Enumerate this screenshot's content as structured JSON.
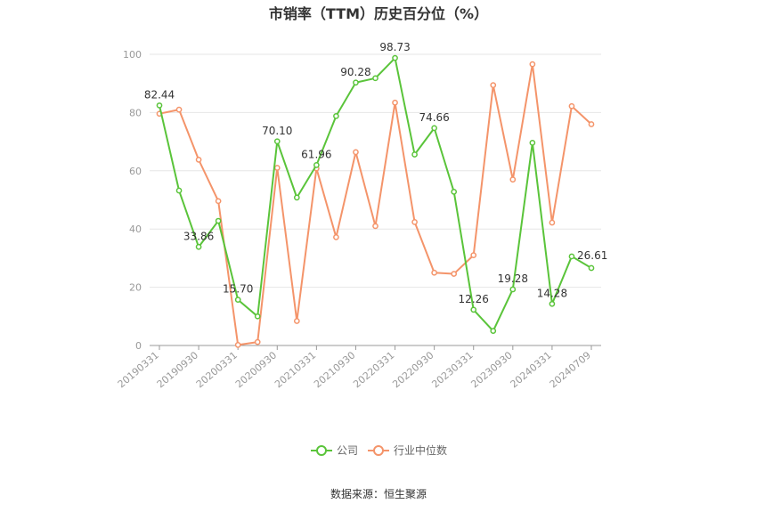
{
  "chart_data": {
    "type": "line",
    "title": "市销率（TTM）历史百分位（%）",
    "xlabel": "",
    "ylabel": "",
    "ylim": [
      0,
      100
    ],
    "yticks": [
      0,
      20,
      40,
      60,
      80,
      100
    ],
    "x": [
      "20190331",
      "20190630",
      "20190930",
      "20191231",
      "20200331",
      "20200630",
      "20200930",
      "20201231",
      "20210331",
      "20210630",
      "20210930",
      "20211231",
      "20220331",
      "20220630",
      "20220930",
      "20221231",
      "20230331",
      "20230630",
      "20230930",
      "20231231",
      "20240331",
      "20240630",
      "20240709"
    ],
    "xtick_labels": [
      "20190331",
      "20190930",
      "20200331",
      "20200930",
      "20210331",
      "20210930",
      "20220331",
      "20220930",
      "20230331",
      "20230930",
      "20240331",
      "20240709"
    ],
    "series": [
      {
        "name": "公司",
        "color": "#5ac43a",
        "values": [
          82.44,
          53.2,
          33.86,
          42.8,
          15.7,
          10.0,
          70.1,
          50.8,
          61.96,
          78.8,
          90.28,
          91.8,
          98.73,
          65.6,
          74.66,
          52.8,
          12.26,
          5.0,
          19.28,
          69.6,
          14.28,
          30.6,
          26.61
        ],
        "labels": {
          "0": "82.44",
          "2": "33.86",
          "4": "15.70",
          "6": "70.10",
          "8": "61.96",
          "10": "90.28",
          "12": "98.73",
          "14": "74.66",
          "16": "12.26",
          "18": "19.28",
          "20": "14.28",
          "22": "26.61"
        }
      },
      {
        "name": "行业中位数",
        "color": "#f4946a",
        "values": [
          79.6,
          81.0,
          63.8,
          49.6,
          0.2,
          1.2,
          61.0,
          8.4,
          60.8,
          37.2,
          66.4,
          41.0,
          83.4,
          42.4,
          25.0,
          24.6,
          31.0,
          89.4,
          57.0,
          96.6,
          42.2,
          82.2,
          76.0
        ]
      }
    ],
    "legend_position": "bottom-center"
  },
  "footer": {
    "source": "数据来源：恒生聚源"
  }
}
